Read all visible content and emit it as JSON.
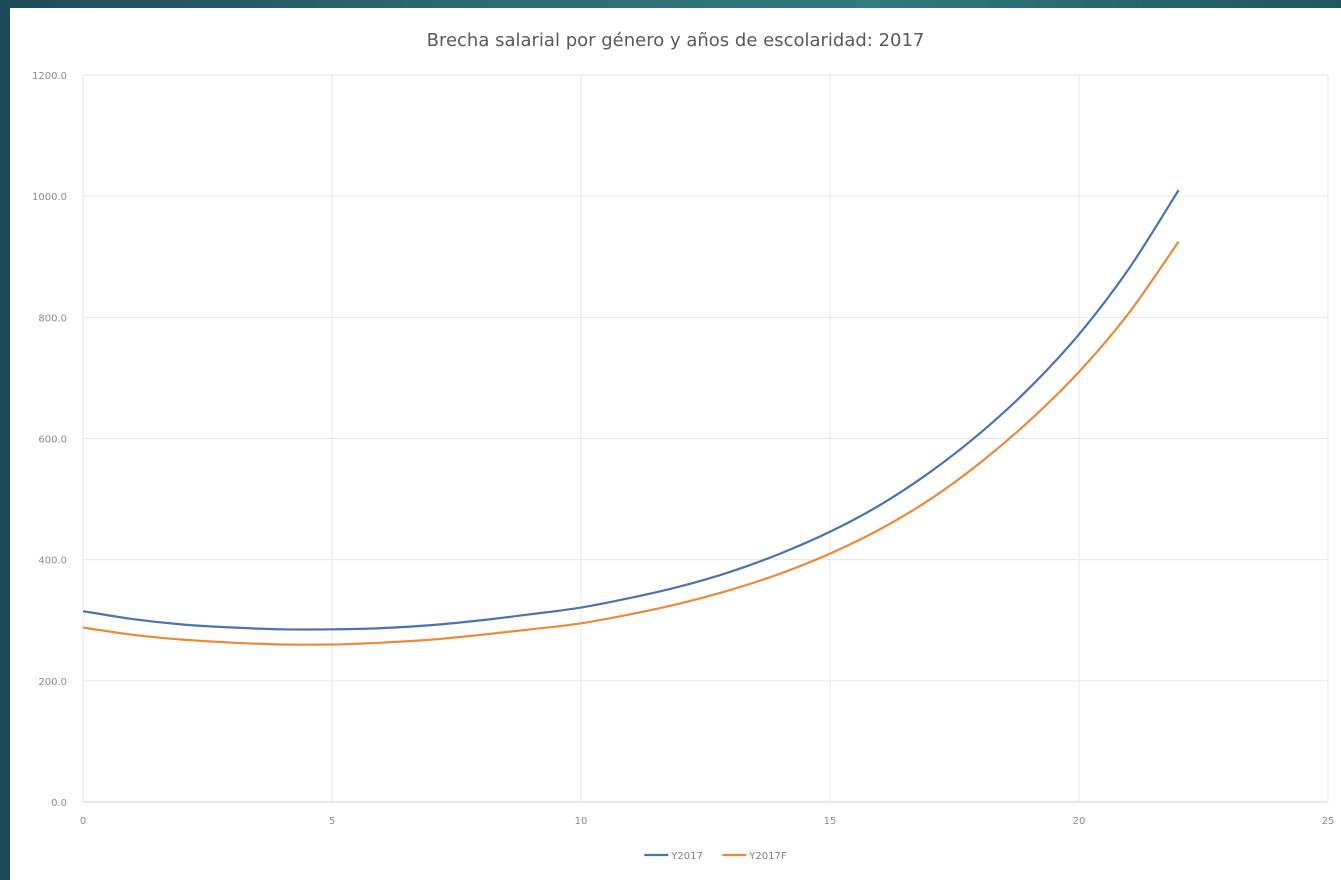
{
  "chart_data": {
    "type": "line",
    "title": "Brecha salarial por género y años de escolaridad: 2017",
    "xlabel": "",
    "ylabel": "",
    "xlim": [
      0,
      25
    ],
    "ylim": [
      0,
      1200
    ],
    "x_ticks": [
      "0",
      "5",
      "10",
      "15",
      "20",
      "25"
    ],
    "y_ticks": [
      "0.0",
      "200.0",
      "400.0",
      "600.0",
      "800.0",
      "1000.0",
      "1200.0"
    ],
    "grid": true,
    "legend_position": "bottom",
    "x": [
      0,
      1,
      2,
      3,
      4,
      5,
      6,
      7,
      8,
      9,
      10,
      11,
      12,
      13,
      14,
      15,
      16,
      17,
      18,
      19,
      20,
      21,
      22
    ],
    "series": [
      {
        "name": "Y2017",
        "color": "#4a73b0",
        "values": [
          315,
          302,
          293,
          288,
          285,
          285,
          287,
          292,
          300,
          310,
          321,
          337,
          356,
          380,
          410,
          446,
          490,
          544,
          608,
          683,
          772,
          880,
          1010
        ]
      },
      {
        "name": "Y2017F",
        "color": "#e88b3a",
        "values": [
          288,
          276,
          268,
          263,
          260,
          260,
          263,
          268,
          276,
          285,
          295,
          310,
          328,
          350,
          377,
          410,
          450,
          499,
          559,
          629,
          710,
          807,
          925
        ]
      }
    ]
  }
}
